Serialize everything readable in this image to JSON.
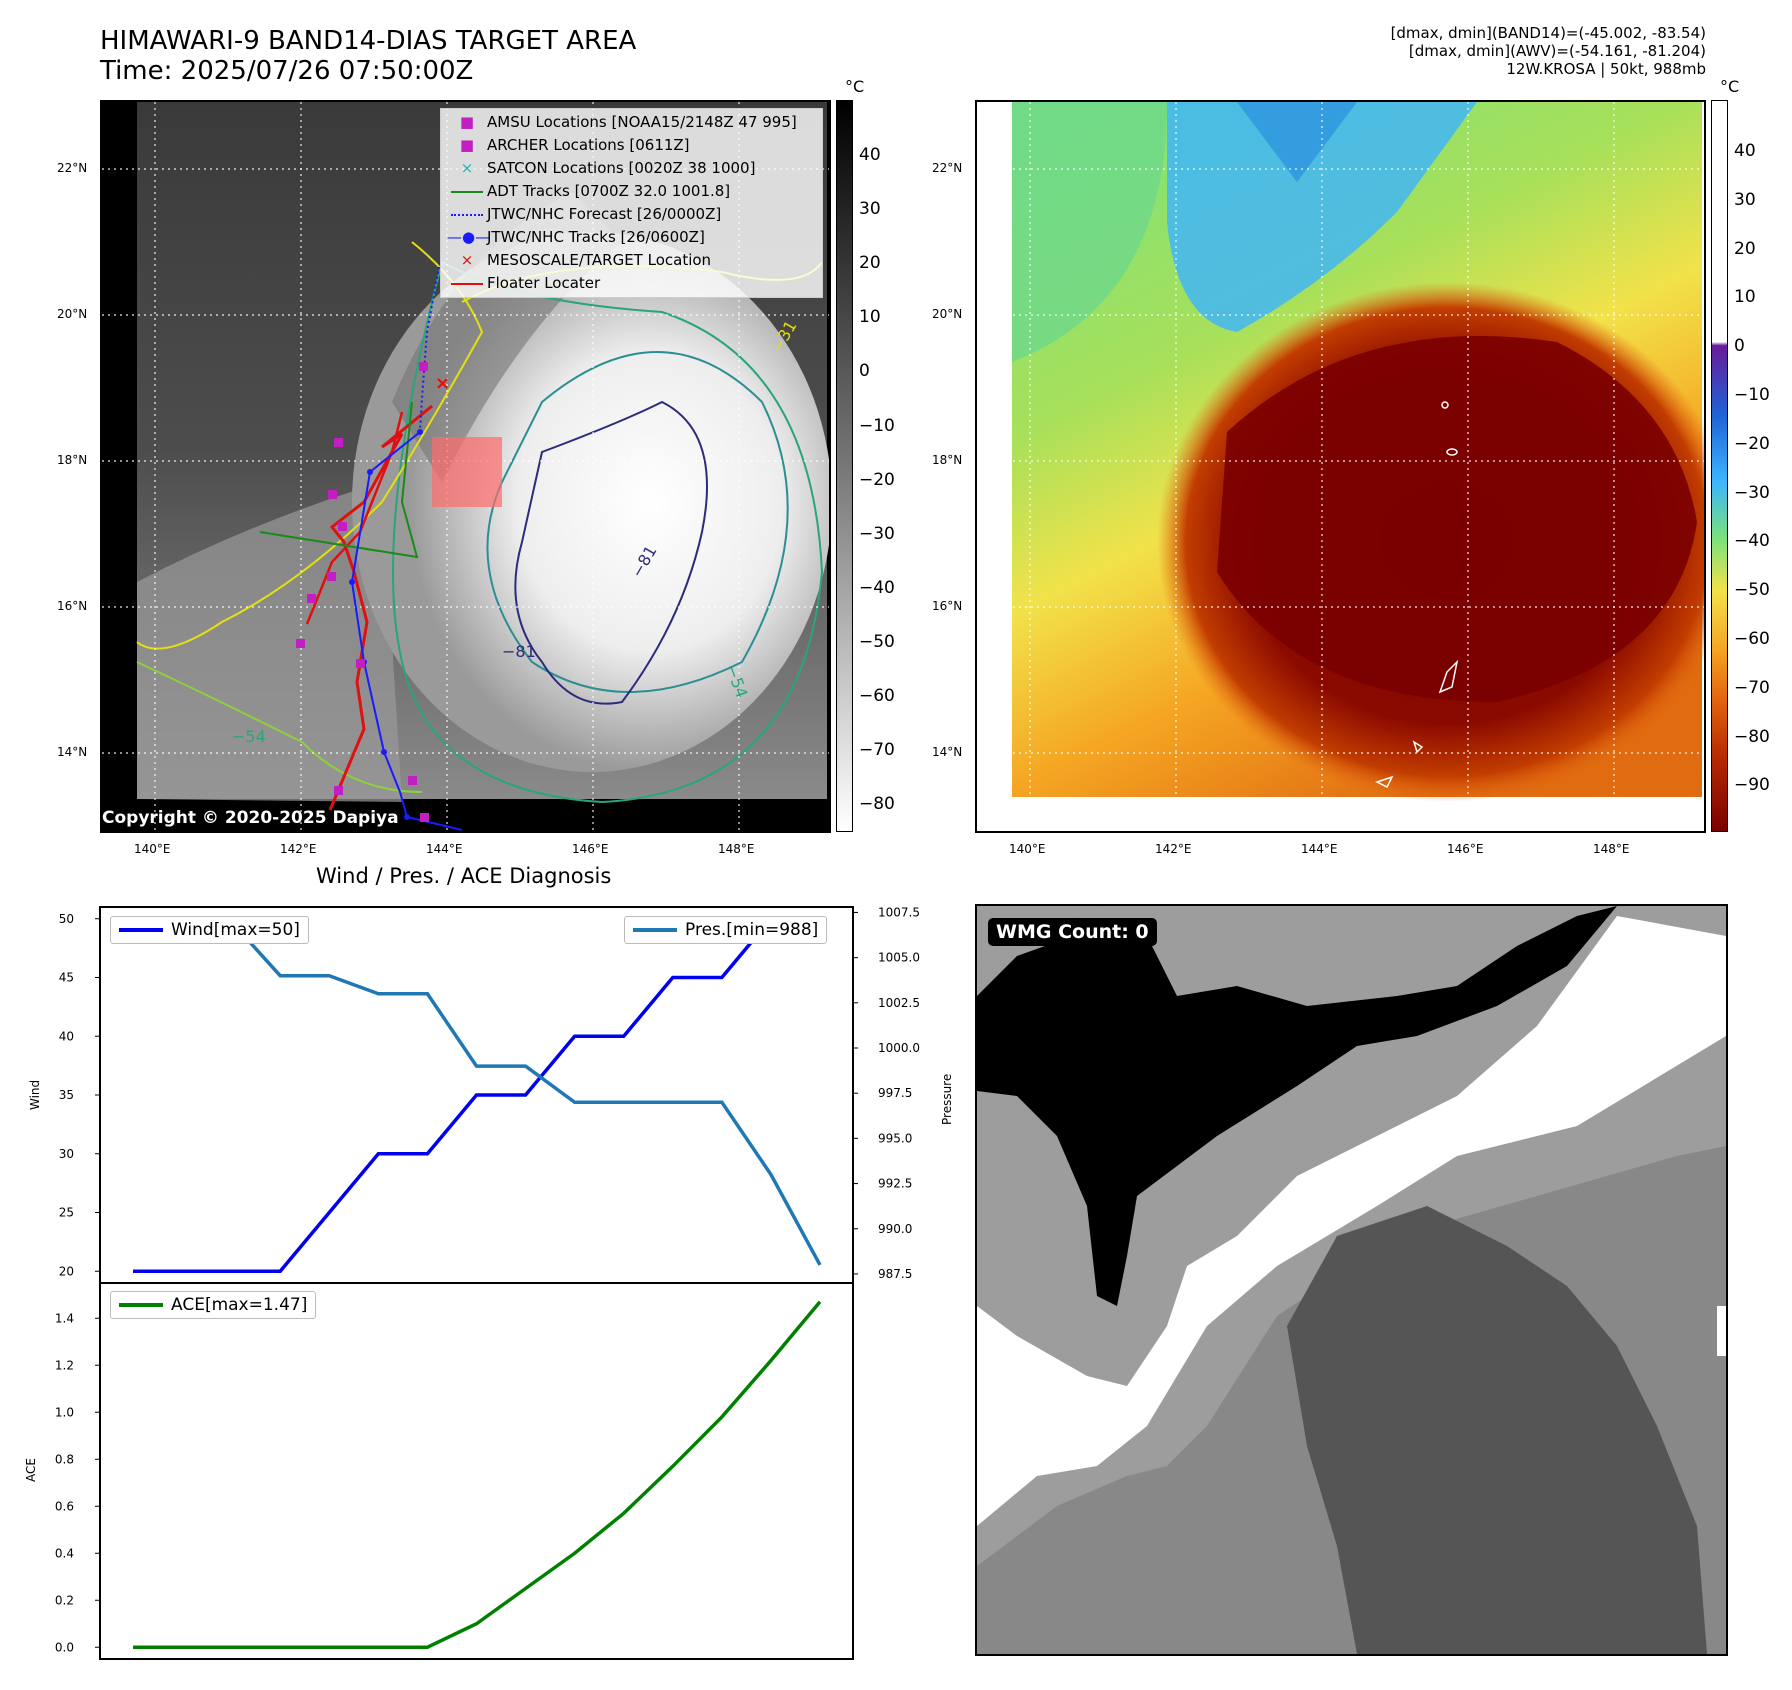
{
  "header": {
    "title_line1": "HIMAWARI-9 BAND14-DIAS TARGET AREA",
    "title_line2": "Time: 2025/07/26 07:50:00Z",
    "info_line1": "[dmax, dmin](BAND14)=(-45.002, -83.54)",
    "info_line2": "[dmax, dmin](AWV)=(-54.161, -81.204)",
    "info_line3": "12W.KROSA | 50kt, 988mb"
  },
  "map_axes": {
    "lat_labels": [
      "22°N",
      "20°N",
      "18°N",
      "16°N",
      "14°N"
    ],
    "lon_labels": [
      "140°E",
      "142°E",
      "144°E",
      "146°E",
      "148°E"
    ]
  },
  "ir_colorbar": {
    "unit": "°C",
    "ticks": [
      "40",
      "30",
      "20",
      "10",
      "0",
      "−10",
      "−20",
      "−30",
      "−40",
      "−50",
      "−60",
      "−70",
      "−80"
    ]
  },
  "awv_colorbar": {
    "unit": "°C",
    "ticks": [
      "40",
      "30",
      "20",
      "10",
      "0",
      "−10",
      "−20",
      "−30",
      "−40",
      "−50",
      "−60",
      "−70",
      "−80",
      "−90"
    ],
    "colors": [
      "#ffffff",
      "#6a1b9a",
      "#1e63d6",
      "#3cb4ff",
      "#7be27b",
      "#f2e24a",
      "#f5a623",
      "#e3640f",
      "#b52a00",
      "#7a0000"
    ]
  },
  "map_legend": [
    {
      "symbol": "square",
      "color": "#c21fc2",
      "label": "AMSU Locations [NOAA15/2148Z 47 995]"
    },
    {
      "symbol": "square",
      "color": "#c21fc2",
      "label": "ARCHER Locations [0611Z]"
    },
    {
      "symbol": "x",
      "color": "#1fb7b7",
      "label": "SATCON Locations [0020Z 38 1000]"
    },
    {
      "symbol": "line",
      "color": "#1a8a1a",
      "label": "ADT Tracks [0700Z 32.0 1001.8]"
    },
    {
      "symbol": "dotted",
      "color": "#1a1aff",
      "label": "JTWC/NHC Forecast [26/0000Z]"
    },
    {
      "symbol": "dotline",
      "color": "#1a1aff",
      "label": "JTWC/NHC Tracks [26/0600Z]"
    },
    {
      "symbol": "x",
      "color": "#e01010",
      "label": "MESOSCALE/TARGET Location"
    },
    {
      "symbol": "line",
      "color": "#e01010",
      "label": "Floater Locater"
    }
  ],
  "contour_labels": [
    "−81",
    "−81",
    "−54",
    "−54",
    "−31"
  ],
  "copyright": "Copyright © 2020-2025 Dapiya",
  "diagnosis": {
    "subtitle": "Wind / Pres. / ACE Diagnosis",
    "wind_legend": "Wind[max=50]",
    "pres_legend": "Pres.[min=988]",
    "ace_legend": "ACE[max=1.47]",
    "wind_axis_label": "Wind",
    "pres_axis_label": "Pressure",
    "ace_axis_label": "ACE"
  },
  "wmg": {
    "label": "WMG Count: 0"
  },
  "chart_data": [
    {
      "type": "line",
      "x": [
        0,
        1,
        2,
        3,
        4,
        5,
        6,
        7,
        8,
        9,
        10,
        11,
        12,
        13,
        14
      ],
      "series": [
        {
          "name": "Wind[max=50]",
          "axis": "left",
          "color": "#0000ee",
          "values": [
            20,
            20,
            20,
            20,
            25,
            30,
            30,
            35,
            35,
            40,
            40,
            45,
            45,
            50,
            50
          ]
        },
        {
          "name": "Pres.[min=988]",
          "axis": "right",
          "color": "#1f77b4",
          "values": [
            1007,
            1007,
            1007,
            1004,
            1004,
            1003,
            1003,
            999,
            999,
            997,
            997,
            997,
            997,
            993,
            988
          ]
        }
      ],
      "ylabel": "Wind",
      "ylim": [
        19,
        51
      ],
      "yticks": [
        20,
        25,
        30,
        35,
        40,
        45,
        50
      ],
      "y2label": "Pressure",
      "y2lim": [
        987,
        1007.8
      ],
      "y2ticks": [
        "987.5",
        "990.0",
        "992.5",
        "995.0",
        "997.5",
        "1000.0",
        "1002.5",
        "1005.0",
        "1007.5"
      ],
      "legend": "top-left / top-right"
    },
    {
      "type": "line",
      "x": [
        0,
        1,
        2,
        3,
        4,
        5,
        6,
        7,
        8,
        9,
        10,
        11,
        12,
        13,
        14
      ],
      "series": [
        {
          "name": "ACE[max=1.47]",
          "color": "#008000",
          "values": [
            0,
            0,
            0,
            0,
            0,
            0,
            0,
            0.1,
            0.25,
            0.4,
            0.57,
            0.77,
            0.98,
            1.22,
            1.47
          ]
        }
      ],
      "ylabel": "ACE",
      "ylim": [
        -0.05,
        1.55
      ],
      "yticks": [
        "0.0",
        "0.2",
        "0.4",
        "0.6",
        "0.8",
        "1.0",
        "1.2",
        "1.4"
      ],
      "legend": "top-left"
    }
  ]
}
